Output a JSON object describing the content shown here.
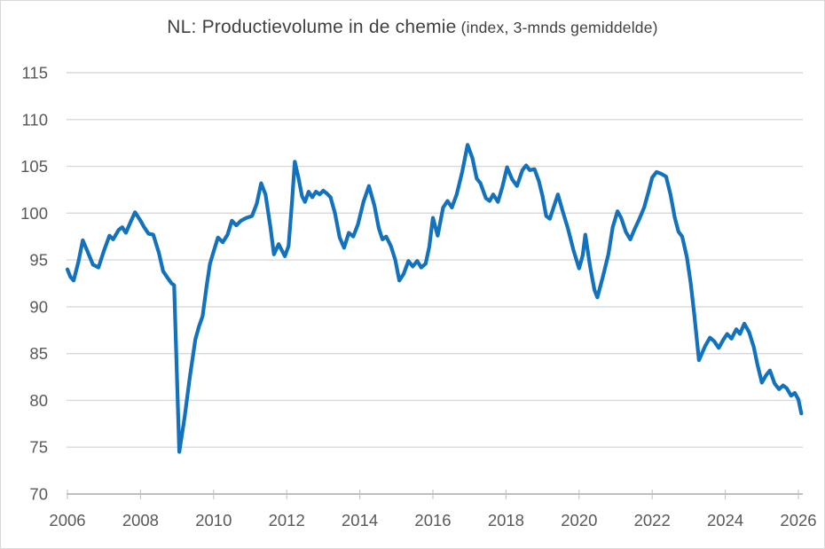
{
  "chart_data": {
    "type": "line",
    "title": "NL: Productievolume in de chemie",
    "title_suffix": " (index, 3-mnds gemiddelde)",
    "xlabel": "",
    "ylabel": "",
    "legend": "none",
    "grid": true,
    "ylim": [
      70,
      115
    ],
    "xlim": [
      2006,
      2026.17
    ],
    "x_ticks": [
      2006,
      2008,
      2010,
      2012,
      2014,
      2016,
      2018,
      2020,
      2022,
      2024,
      2026
    ],
    "y_ticks": [
      70,
      75,
      80,
      85,
      90,
      95,
      100,
      105,
      110,
      115
    ],
    "colors": {
      "line": "#1272BE",
      "gridline": "#D9D9D9",
      "axis": "#BFBFBF",
      "label": "#595959",
      "title": "#404040"
    },
    "series": [
      {
        "points": [
          [
            2006.0,
            94.0
          ],
          [
            2006.08,
            93.2
          ],
          [
            2006.17,
            92.8
          ],
          [
            2006.3,
            94.8
          ],
          [
            2006.42,
            97.1
          ],
          [
            2006.55,
            95.9
          ],
          [
            2006.7,
            94.5
          ],
          [
            2006.85,
            94.2
          ],
          [
            2007.0,
            96.0
          ],
          [
            2007.15,
            97.6
          ],
          [
            2007.25,
            97.2
          ],
          [
            2007.4,
            98.2
          ],
          [
            2007.5,
            98.5
          ],
          [
            2007.6,
            97.9
          ],
          [
            2007.72,
            99.0
          ],
          [
            2007.85,
            100.1
          ],
          [
            2008.0,
            99.2
          ],
          [
            2008.1,
            98.5
          ],
          [
            2008.22,
            97.8
          ],
          [
            2008.35,
            97.7
          ],
          [
            2008.5,
            95.8
          ],
          [
            2008.62,
            93.8
          ],
          [
            2008.72,
            93.2
          ],
          [
            2008.85,
            92.5
          ],
          [
            2008.92,
            92.3
          ],
          [
            2009.06,
            74.5
          ],
          [
            2009.2,
            78.0
          ],
          [
            2009.35,
            82.5
          ],
          [
            2009.5,
            86.5
          ],
          [
            2009.6,
            87.9
          ],
          [
            2009.7,
            89.0
          ],
          [
            2009.8,
            92.0
          ],
          [
            2009.9,
            94.6
          ],
          [
            2010.0,
            95.9
          ],
          [
            2010.12,
            97.4
          ],
          [
            2010.25,
            96.9
          ],
          [
            2010.38,
            97.7
          ],
          [
            2010.5,
            99.2
          ],
          [
            2010.62,
            98.7
          ],
          [
            2010.75,
            99.2
          ],
          [
            2010.9,
            99.5
          ],
          [
            2011.05,
            99.7
          ],
          [
            2011.18,
            101.0
          ],
          [
            2011.3,
            103.2
          ],
          [
            2011.42,
            102.0
          ],
          [
            2011.55,
            98.6
          ],
          [
            2011.65,
            95.6
          ],
          [
            2011.78,
            96.7
          ],
          [
            2011.95,
            95.4
          ],
          [
            2012.05,
            96.5
          ],
          [
            2012.15,
            101.5
          ],
          [
            2012.22,
            105.5
          ],
          [
            2012.32,
            103.8
          ],
          [
            2012.42,
            101.8
          ],
          [
            2012.5,
            101.2
          ],
          [
            2012.6,
            102.3
          ],
          [
            2012.7,
            101.7
          ],
          [
            2012.8,
            102.3
          ],
          [
            2012.9,
            102.0
          ],
          [
            2013.0,
            102.4
          ],
          [
            2013.1,
            102.1
          ],
          [
            2013.2,
            101.7
          ],
          [
            2013.32,
            100.0
          ],
          [
            2013.45,
            97.4
          ],
          [
            2013.57,
            96.3
          ],
          [
            2013.7,
            97.9
          ],
          [
            2013.82,
            97.5
          ],
          [
            2013.95,
            98.8
          ],
          [
            2014.1,
            101.2
          ],
          [
            2014.25,
            102.9
          ],
          [
            2014.4,
            100.8
          ],
          [
            2014.52,
            98.4
          ],
          [
            2014.62,
            97.2
          ],
          [
            2014.72,
            97.5
          ],
          [
            2014.85,
            96.5
          ],
          [
            2014.97,
            95.0
          ],
          [
            2015.08,
            92.8
          ],
          [
            2015.2,
            93.5
          ],
          [
            2015.33,
            94.9
          ],
          [
            2015.45,
            94.3
          ],
          [
            2015.57,
            94.9
          ],
          [
            2015.68,
            94.2
          ],
          [
            2015.8,
            94.6
          ],
          [
            2015.9,
            96.4
          ],
          [
            2016.0,
            99.5
          ],
          [
            2016.13,
            97.6
          ],
          [
            2016.28,
            100.6
          ],
          [
            2016.4,
            101.3
          ],
          [
            2016.52,
            100.6
          ],
          [
            2016.65,
            102.0
          ],
          [
            2016.8,
            104.4
          ],
          [
            2016.95,
            107.3
          ],
          [
            2017.08,
            105.9
          ],
          [
            2017.2,
            103.7
          ],
          [
            2017.3,
            103.2
          ],
          [
            2017.45,
            101.6
          ],
          [
            2017.55,
            101.3
          ],
          [
            2017.65,
            102.0
          ],
          [
            2017.78,
            101.2
          ],
          [
            2017.9,
            102.8
          ],
          [
            2018.03,
            104.9
          ],
          [
            2018.17,
            103.6
          ],
          [
            2018.3,
            102.9
          ],
          [
            2018.45,
            104.6
          ],
          [
            2018.55,
            105.1
          ],
          [
            2018.65,
            104.6
          ],
          [
            2018.78,
            104.7
          ],
          [
            2018.9,
            103.4
          ],
          [
            2019.0,
            101.8
          ],
          [
            2019.1,
            99.7
          ],
          [
            2019.2,
            99.4
          ],
          [
            2019.3,
            100.6
          ],
          [
            2019.42,
            102.0
          ],
          [
            2019.55,
            100.2
          ],
          [
            2019.7,
            98.3
          ],
          [
            2019.85,
            96.0
          ],
          [
            2020.0,
            94.1
          ],
          [
            2020.1,
            95.5
          ],
          [
            2020.17,
            97.7
          ],
          [
            2020.3,
            94.3
          ],
          [
            2020.42,
            91.8
          ],
          [
            2020.5,
            91.0
          ],
          [
            2020.65,
            93.2
          ],
          [
            2020.8,
            95.6
          ],
          [
            2020.92,
            98.5
          ],
          [
            2021.05,
            100.2
          ],
          [
            2021.15,
            99.5
          ],
          [
            2021.28,
            98.0
          ],
          [
            2021.4,
            97.2
          ],
          [
            2021.52,
            98.3
          ],
          [
            2021.65,
            99.4
          ],
          [
            2021.78,
            100.6
          ],
          [
            2021.9,
            102.3
          ],
          [
            2022.0,
            103.8
          ],
          [
            2022.12,
            104.4
          ],
          [
            2022.25,
            104.2
          ],
          [
            2022.38,
            103.9
          ],
          [
            2022.5,
            102.0
          ],
          [
            2022.62,
            99.5
          ],
          [
            2022.72,
            98.0
          ],
          [
            2022.82,
            97.5
          ],
          [
            2022.95,
            95.3
          ],
          [
            2023.05,
            92.6
          ],
          [
            2023.15,
            89.2
          ],
          [
            2023.28,
            84.3
          ],
          [
            2023.45,
            85.8
          ],
          [
            2023.58,
            86.7
          ],
          [
            2023.7,
            86.3
          ],
          [
            2023.82,
            85.6
          ],
          [
            2023.95,
            86.5
          ],
          [
            2024.05,
            87.1
          ],
          [
            2024.17,
            86.6
          ],
          [
            2024.3,
            87.6
          ],
          [
            2024.4,
            87.1
          ],
          [
            2024.52,
            88.2
          ],
          [
            2024.65,
            87.3
          ],
          [
            2024.78,
            85.7
          ],
          [
            2024.88,
            83.8
          ],
          [
            2025.0,
            81.9
          ],
          [
            2025.12,
            82.7
          ],
          [
            2025.22,
            83.2
          ],
          [
            2025.35,
            81.8
          ],
          [
            2025.47,
            81.2
          ],
          [
            2025.58,
            81.6
          ],
          [
            2025.68,
            81.3
          ],
          [
            2025.8,
            80.5
          ],
          [
            2025.9,
            80.8
          ],
          [
            2026.0,
            80.1
          ],
          [
            2026.08,
            78.6
          ]
        ]
      }
    ]
  }
}
